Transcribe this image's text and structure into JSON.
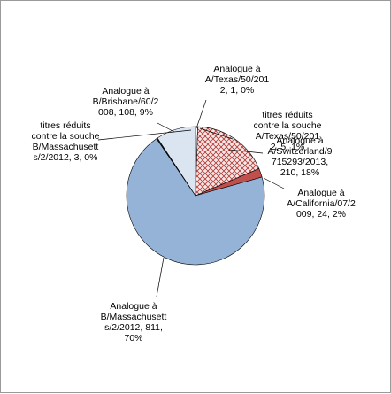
{
  "chart_data": {
    "type": "pie",
    "title": "",
    "legend": "none",
    "series": [
      {
        "values": [
          1,
          5,
          210,
          24,
          811,
          3,
          108
        ],
        "slices": [
          {
            "label": "Analogue à A/Texas/50/2012",
            "value": 1,
            "percent": "0%",
            "label_lines": [
              "Analogue à",
              "A/Texas/50/201",
              "2, 1, 0%"
            ],
            "color": "#1f1f1f"
          },
          {
            "label": "titres réduits contre la souche A/Texas/50/2012",
            "value": 5,
            "percent": "1%",
            "label_lines": [
              "titres réduits",
              "contre la souche",
              "A/Texas/50/201",
              "2, 5, 1%"
            ],
            "color": "#ffffff"
          },
          {
            "label": "Analogue à A/Switzerland/9715293/2013",
            "value": 210,
            "percent": "18%",
            "label_lines": [
              "Analogue à",
              "A/Switzerland/9",
              "715293/2013,",
              "210, 18%"
            ],
            "color": "#f3dede",
            "pattern": "hatch-red"
          },
          {
            "label": "Analogue à A/California/07/2009",
            "value": 24,
            "percent": "2%",
            "label_lines": [
              "Analogue à",
              "A/California/07/2",
              "009, 24, 2%"
            ],
            "color": "#c0504d"
          },
          {
            "label": "Analogue à B/Massachusetts/2/2012",
            "value": 811,
            "percent": "70%",
            "label_lines": [
              "Analogue à",
              "B/Massachusett",
              "s/2/2012, 811,",
              "70%"
            ],
            "color": "#95b3d7"
          },
          {
            "label": "titres réduits contre la souche B/Massachusetts/2/2012",
            "value": 3,
            "percent": "0%",
            "label_lines": [
              "titres réduits",
              "contre la souche",
              "B/Massachusett",
              "s/2/2012, 3, 0%"
            ],
            "color": "#1f1f1f"
          },
          {
            "label": "Analogue à B/Brisbane/60/2008",
            "value": 108,
            "percent": "9%",
            "label_lines": [
              "Analogue à",
              "B/Brisbane/60/2",
              "008, 108, 9%"
            ],
            "color": "#dbe5f1"
          }
        ]
      }
    ]
  }
}
